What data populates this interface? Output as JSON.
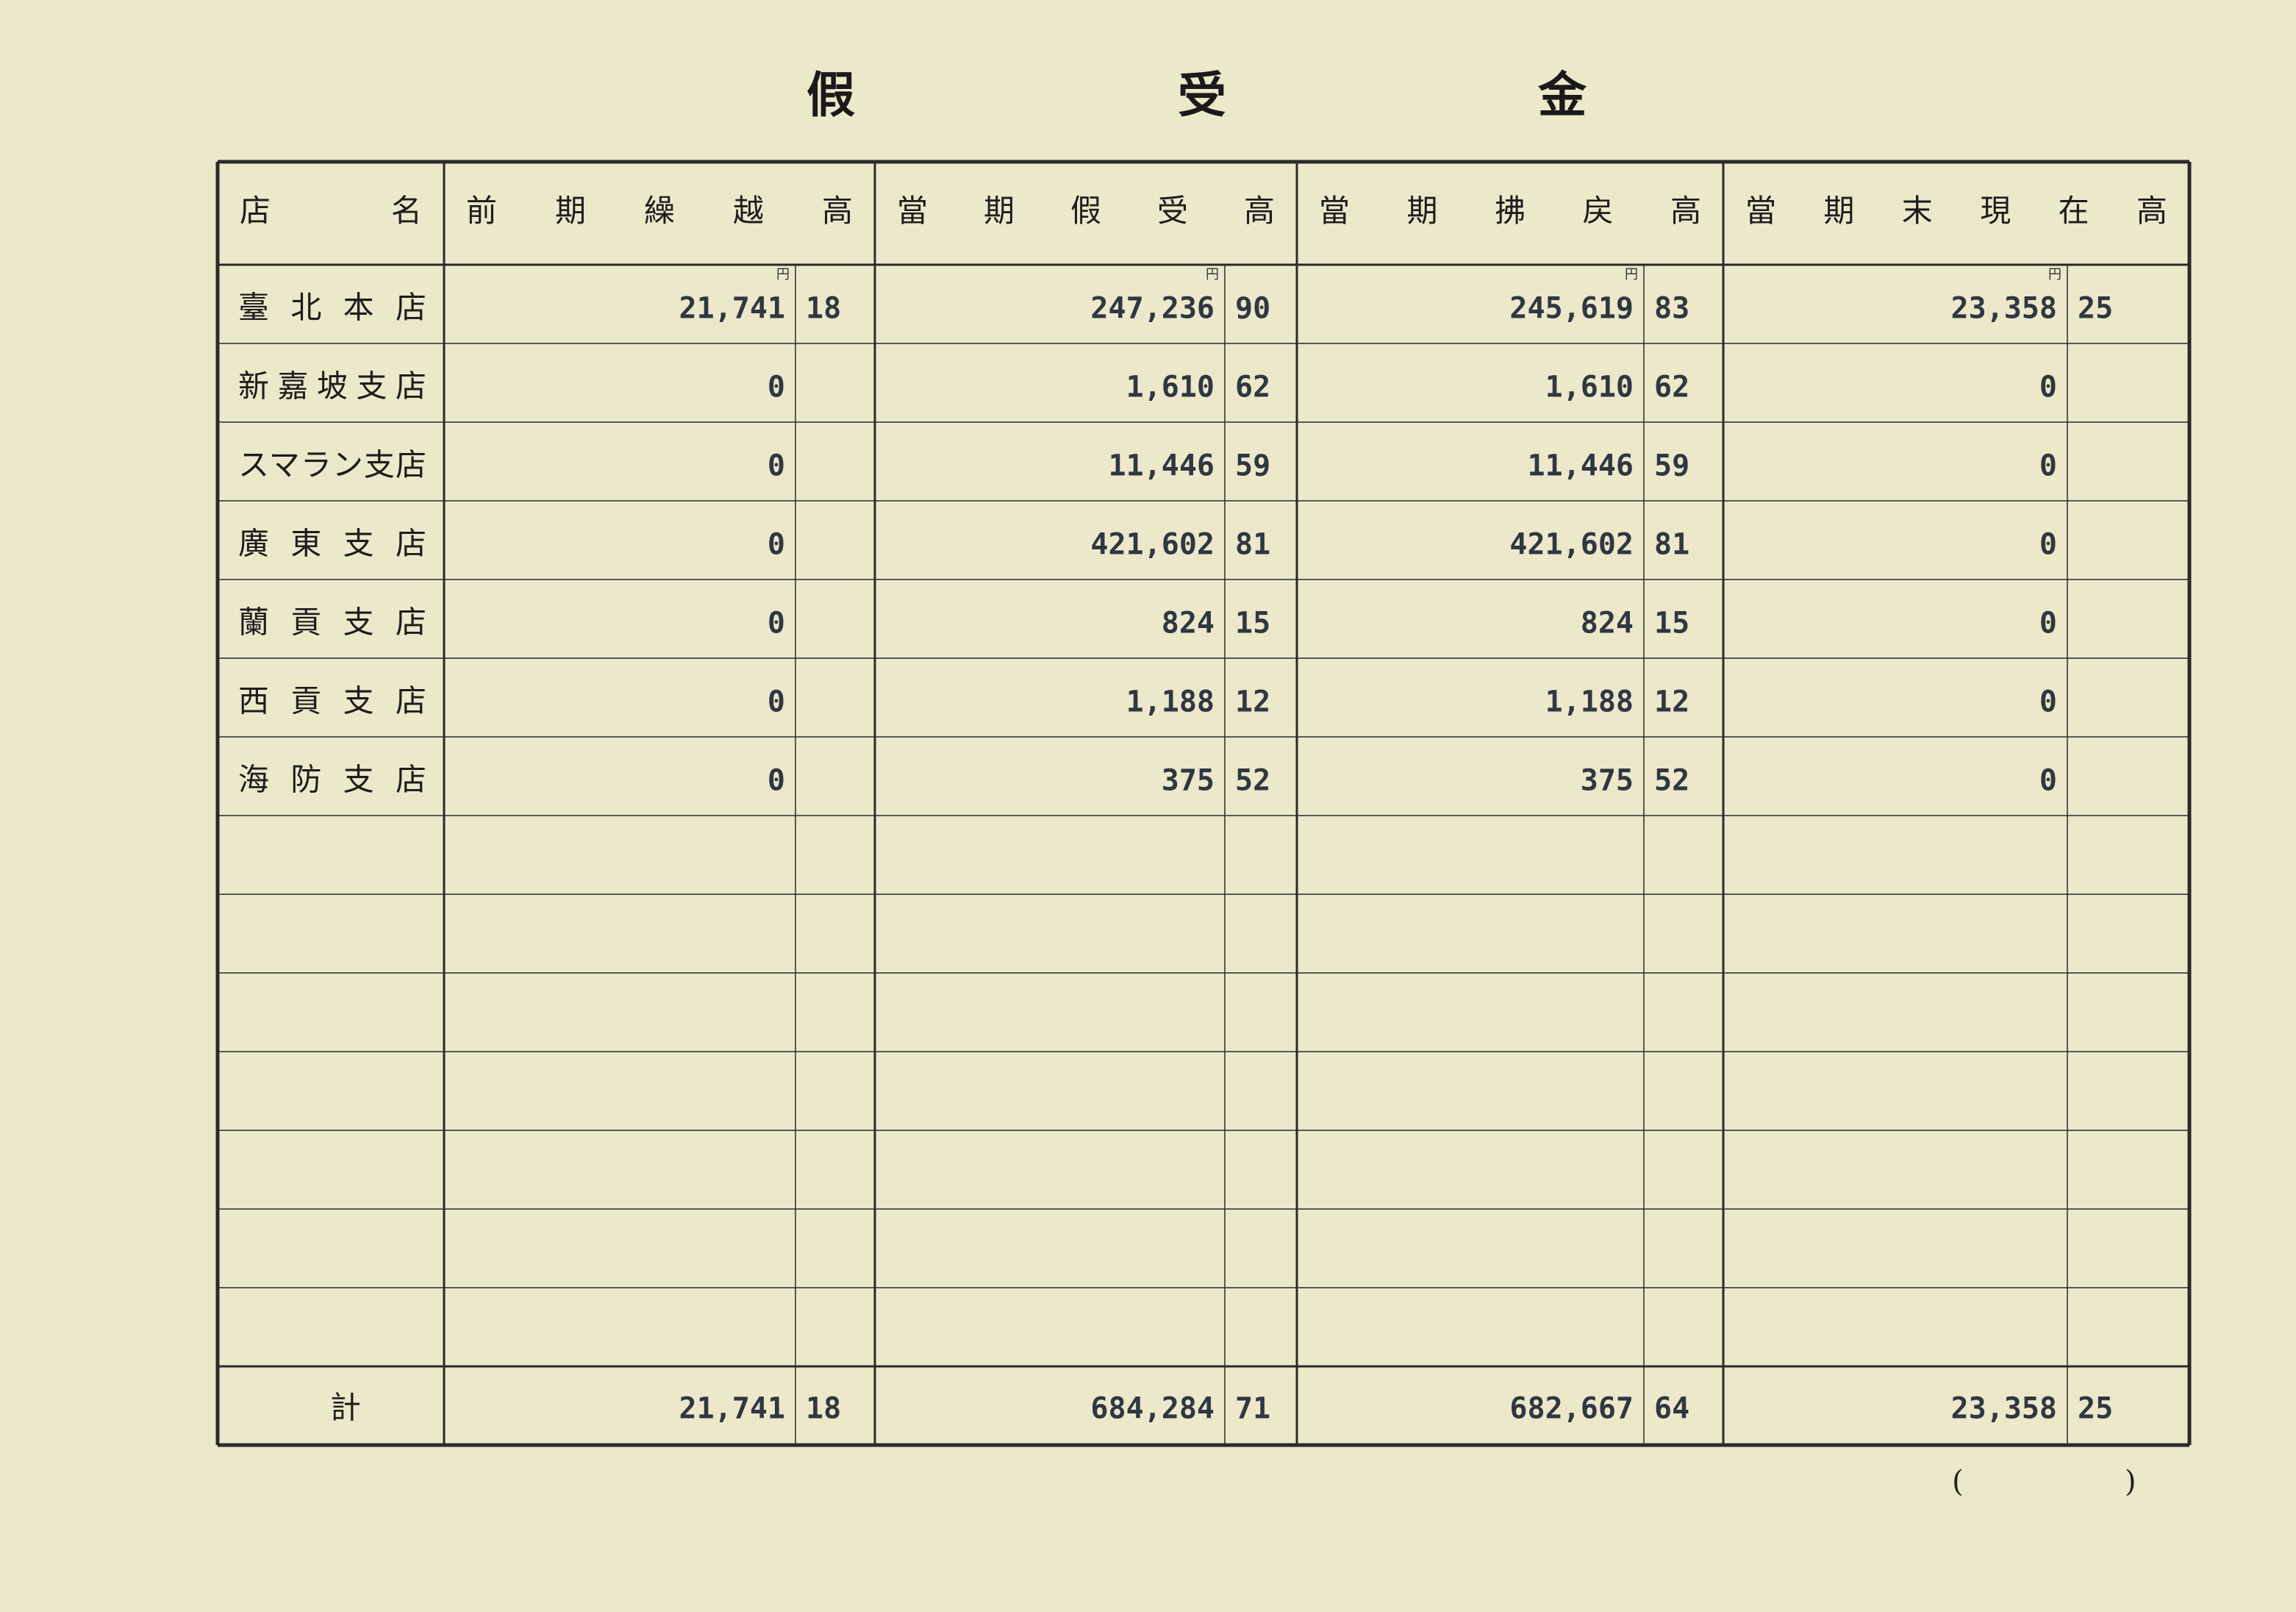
{
  "title": [
    "假",
    "受",
    "金"
  ],
  "table": {
    "columns": [
      "店名",
      "前期繰越高",
      "當期假受高",
      "當期拂戻高",
      "當期末現在高"
    ],
    "unit": "円",
    "rows": [
      {
        "store": "臺北本店",
        "cells": [
          {
            "yen": "21,741",
            "sen": "18"
          },
          {
            "yen": "247,236",
            "sen": "90"
          },
          {
            "yen": "245,619",
            "sen": "83"
          },
          {
            "yen": "23,358",
            "sen": "25"
          }
        ]
      },
      {
        "store": "新嘉坡支店",
        "cells": [
          {
            "yen": "0"
          },
          {
            "yen": "1,610",
            "sen": "62"
          },
          {
            "yen": "1,610",
            "sen": "62"
          },
          {
            "yen": "0"
          }
        ]
      },
      {
        "store": "スマラン支店",
        "cells": [
          {
            "yen": "0"
          },
          {
            "yen": "11,446",
            "sen": "59"
          },
          {
            "yen": "11,446",
            "sen": "59"
          },
          {
            "yen": "0"
          }
        ]
      },
      {
        "store": "廣東支店",
        "cells": [
          {
            "yen": "0"
          },
          {
            "yen": "421,602",
            "sen": "81"
          },
          {
            "yen": "421,602",
            "sen": "81"
          },
          {
            "yen": "0"
          }
        ]
      },
      {
        "store": "蘭貢支店",
        "cells": [
          {
            "yen": "0"
          },
          {
            "yen": "824",
            "sen": "15"
          },
          {
            "yen": "824",
            "sen": "15"
          },
          {
            "yen": "0"
          }
        ]
      },
      {
        "store": "西貢支店",
        "cells": [
          {
            "yen": "0"
          },
          {
            "yen": "1,188",
            "sen": "12"
          },
          {
            "yen": "1,188",
            "sen": "12"
          },
          {
            "yen": "0"
          }
        ]
      },
      {
        "store": "海防支店",
        "cells": [
          {
            "yen": "0"
          },
          {
            "yen": "375",
            "sen": "52"
          },
          {
            "yen": "375",
            "sen": "52"
          },
          {
            "yen": "0"
          }
        ]
      }
    ],
    "total": {
      "label": "計",
      "cells": [
        {
          "yen": "21,741",
          "sen": "18"
        },
        {
          "yen": "684,284",
          "sen": "71"
        },
        {
          "yen": "682,667",
          "sen": "64"
        },
        {
          "yen": "23,358",
          "sen": "25"
        }
      ]
    }
  },
  "footer": [
    "(",
    ")"
  ]
}
